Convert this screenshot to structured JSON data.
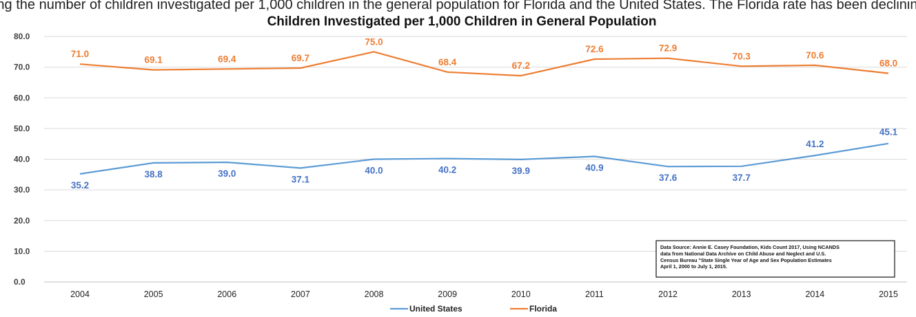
{
  "header_clip_text": "ting the number of children investigated per 1,000 children in the general population for Florida and the United States. The Florida rate has been declining",
  "chart_data": {
    "type": "line",
    "title": "Children Investigated per 1,000 Children in General Population",
    "categories": [
      "2004",
      "2005",
      "2006",
      "2007",
      "2008",
      "2009",
      "2010",
      "2011",
      "2012",
      "2013",
      "2014",
      "2015"
    ],
    "ylim": [
      0,
      80
    ],
    "yticks": [
      "0.0",
      "10.0",
      "20.0",
      "30.0",
      "40.0",
      "50.0",
      "60.0",
      "70.0",
      "80.0"
    ],
    "grid": true,
    "legend_position": "bottom",
    "series": [
      {
        "name": "United States",
        "color": "#5b9bd5",
        "label_color": "#4472c4",
        "values": [
          35.2,
          38.8,
          39.0,
          37.1,
          40.0,
          40.2,
          39.9,
          40.9,
          37.6,
          37.7,
          41.2,
          45.1
        ],
        "labels": [
          "35.2",
          "38.8",
          "39.0",
          "37.1",
          "40.0",
          "40.2",
          "39.9",
          "40.9",
          "37.6",
          "37.7",
          "41.2",
          "45.1"
        ]
      },
      {
        "name": "Florida",
        "color": "#ed7d31",
        "label_color": "#ed7d31",
        "values": [
          71.0,
          69.1,
          69.4,
          69.7,
          75.0,
          68.4,
          67.2,
          72.6,
          72.9,
          70.3,
          70.6,
          68.0
        ],
        "labels": [
          "71.0",
          "69.1",
          "69.4",
          "69.7",
          "75.0",
          "68.4",
          "67.2",
          "72.6",
          "72.9",
          "70.3",
          "70.6",
          "68.0"
        ]
      }
    ],
    "source_note": [
      "Data Source: Annie E. Casey Foundation, Kids Count 2017, Using NCANDS",
      "data from National Data Archive on Child Abuse and Neglect and U.S.",
      "Census Bureau \"State Single Year of Age and Sex Population Estimates",
      "April 1, 2000 to July 1, 2015."
    ]
  }
}
